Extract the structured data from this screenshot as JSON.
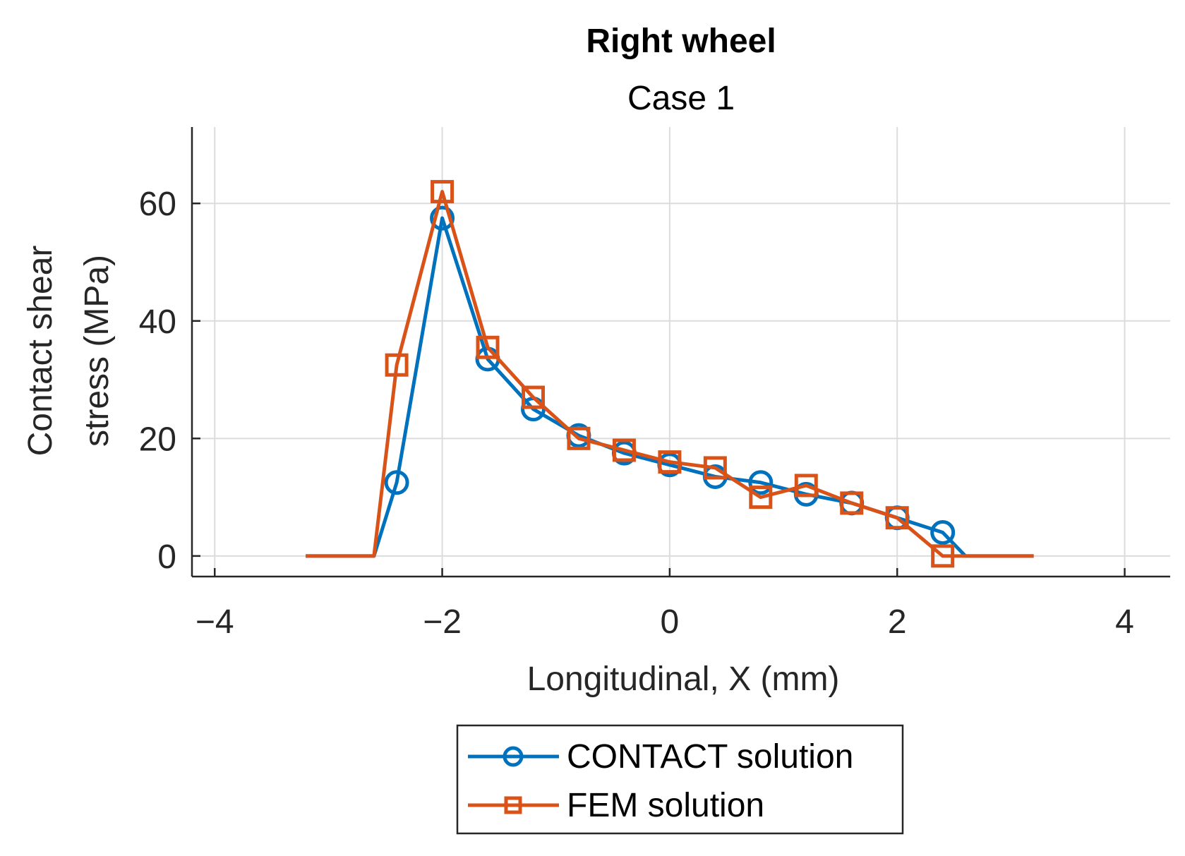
{
  "chart_data": {
    "type": "line",
    "title": "Right wheel",
    "subtitle": "Case 1",
    "xlabel": "Longitudinal, X (mm)",
    "ylabel_lines": [
      "Contact shear",
      "stress (MPa)"
    ],
    "xlim": [
      -4.2,
      4.4
    ],
    "ylim": [
      -3.5,
      73
    ],
    "xticks": [
      -4,
      -2,
      0,
      2,
      4
    ],
    "xtick_labels": [
      "−4",
      "−2",
      "0",
      "2",
      "4"
    ],
    "yticks": [
      0,
      20,
      40,
      60
    ],
    "ytick_labels": [
      "0",
      "20",
      "40",
      "60"
    ],
    "grid": true,
    "legend_position": "bottom-center, outside axes",
    "series": [
      {
        "name": "CONTACT solution",
        "color": "#0072BD",
        "marker": "circle",
        "x": [
          -3.2,
          -2.6,
          -2.4,
          -2.0,
          -1.6,
          -1.2,
          -0.8,
          -0.4,
          0.0,
          0.4,
          0.8,
          1.2,
          1.6,
          2.0,
          2.4,
          2.6,
          3.2
        ],
        "y": [
          0,
          0,
          12.5,
          57.5,
          33.5,
          25.0,
          20.5,
          17.5,
          15.5,
          13.5,
          12.5,
          10.5,
          9.0,
          6.5,
          4.0,
          0,
          0
        ],
        "marker_x": [
          -2.4,
          -2.0,
          -1.6,
          -1.2,
          -0.8,
          -0.4,
          0.0,
          0.4,
          0.8,
          1.2,
          1.6,
          2.0,
          2.4
        ],
        "marker_y": [
          12.5,
          57.5,
          33.5,
          25.0,
          20.5,
          17.5,
          15.5,
          13.5,
          12.5,
          10.5,
          9.0,
          6.5,
          4.0
        ]
      },
      {
        "name": "FEM solution",
        "color": "#D95319",
        "marker": "square",
        "x": [
          -3.2,
          -2.6,
          -2.4,
          -2.0,
          -1.6,
          -1.2,
          -0.8,
          -0.4,
          0.0,
          0.4,
          0.8,
          1.2,
          1.6,
          2.0,
          2.4,
          3.2
        ],
        "y": [
          0,
          0,
          32.5,
          62.0,
          35.5,
          27.0,
          20.0,
          18.0,
          16.0,
          15.0,
          10.0,
          12.0,
          9.0,
          6.5,
          0.0,
          0
        ],
        "marker_x": [
          -2.4,
          -2.0,
          -1.6,
          -1.2,
          -0.8,
          -0.4,
          0.0,
          0.4,
          0.8,
          1.2,
          1.6,
          2.0,
          2.4
        ],
        "marker_y": [
          32.5,
          62.0,
          35.5,
          27.0,
          20.0,
          18.0,
          16.0,
          15.0,
          10.0,
          12.0,
          9.0,
          6.5,
          0.0
        ]
      }
    ]
  }
}
